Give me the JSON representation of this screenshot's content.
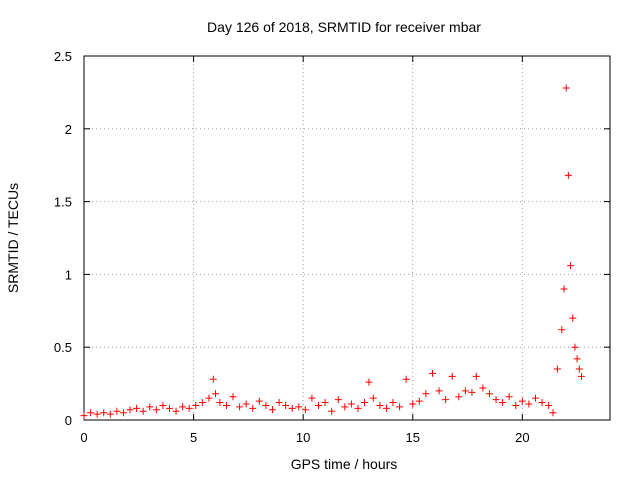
{
  "chart_data": {
    "type": "scatter",
    "title": "Day 126 of 2018, SRMTID for receiver mbar",
    "xlabel": "GPS time / hours",
    "ylabel": "SRMTID / TECUs",
    "xlim": [
      0,
      24
    ],
    "ylim": [
      0,
      2.5
    ],
    "xticks": [
      0,
      5,
      10,
      15,
      20
    ],
    "yticks": [
      0,
      0.5,
      1,
      1.5,
      2,
      2.5
    ],
    "xtick_labels": [
      "0",
      "5",
      "10",
      "15",
      "20"
    ],
    "ytick_labels": [
      "0",
      "0.5",
      "1",
      "1.5",
      "2",
      "2.5"
    ],
    "grid": true,
    "marker": "+",
    "color": "#ff0000",
    "series": [
      {
        "name": "SRMTID",
        "x": [
          0.0,
          0.3,
          0.6,
          0.9,
          1.2,
          1.5,
          1.8,
          2.1,
          2.4,
          2.7,
          3.0,
          3.3,
          3.6,
          3.9,
          4.2,
          4.5,
          4.8,
          5.1,
          5.4,
          5.7,
          5.9,
          6.0,
          6.2,
          6.5,
          6.8,
          7.1,
          7.4,
          7.7,
          8.0,
          8.3,
          8.6,
          8.9,
          9.2,
          9.5,
          9.8,
          10.1,
          10.4,
          10.7,
          11.0,
          11.3,
          11.6,
          11.9,
          12.2,
          12.5,
          12.8,
          13.0,
          13.2,
          13.5,
          13.8,
          14.1,
          14.4,
          14.7,
          15.0,
          15.3,
          15.6,
          15.9,
          16.2,
          16.5,
          16.8,
          17.1,
          17.4,
          17.7,
          17.9,
          18.2,
          18.5,
          18.8,
          19.1,
          19.4,
          19.7,
          20.0,
          20.3,
          20.6,
          20.9,
          21.2,
          21.4,
          21.6,
          21.8,
          21.9,
          22.0,
          22.1,
          22.2,
          22.3,
          22.4,
          22.5,
          22.6,
          22.7
        ],
        "values": [
          0.03,
          0.05,
          0.04,
          0.05,
          0.04,
          0.06,
          0.05,
          0.07,
          0.08,
          0.06,
          0.09,
          0.07,
          0.1,
          0.08,
          0.06,
          0.09,
          0.08,
          0.1,
          0.12,
          0.15,
          0.28,
          0.18,
          0.12,
          0.1,
          0.16,
          0.09,
          0.11,
          0.08,
          0.13,
          0.1,
          0.07,
          0.12,
          0.1,
          0.08,
          0.09,
          0.07,
          0.15,
          0.1,
          0.12,
          0.06,
          0.14,
          0.09,
          0.11,
          0.08,
          0.12,
          0.26,
          0.15,
          0.1,
          0.08,
          0.12,
          0.09,
          0.28,
          0.11,
          0.13,
          0.18,
          0.32,
          0.2,
          0.14,
          0.3,
          0.16,
          0.2,
          0.19,
          0.3,
          0.22,
          0.18,
          0.14,
          0.12,
          0.16,
          0.1,
          0.13,
          0.11,
          0.15,
          0.12,
          0.1,
          0.05,
          0.35,
          0.62,
          0.9,
          2.28,
          1.68,
          1.06,
          0.7,
          0.5,
          0.42,
          0.35,
          0.3
        ]
      }
    ]
  }
}
